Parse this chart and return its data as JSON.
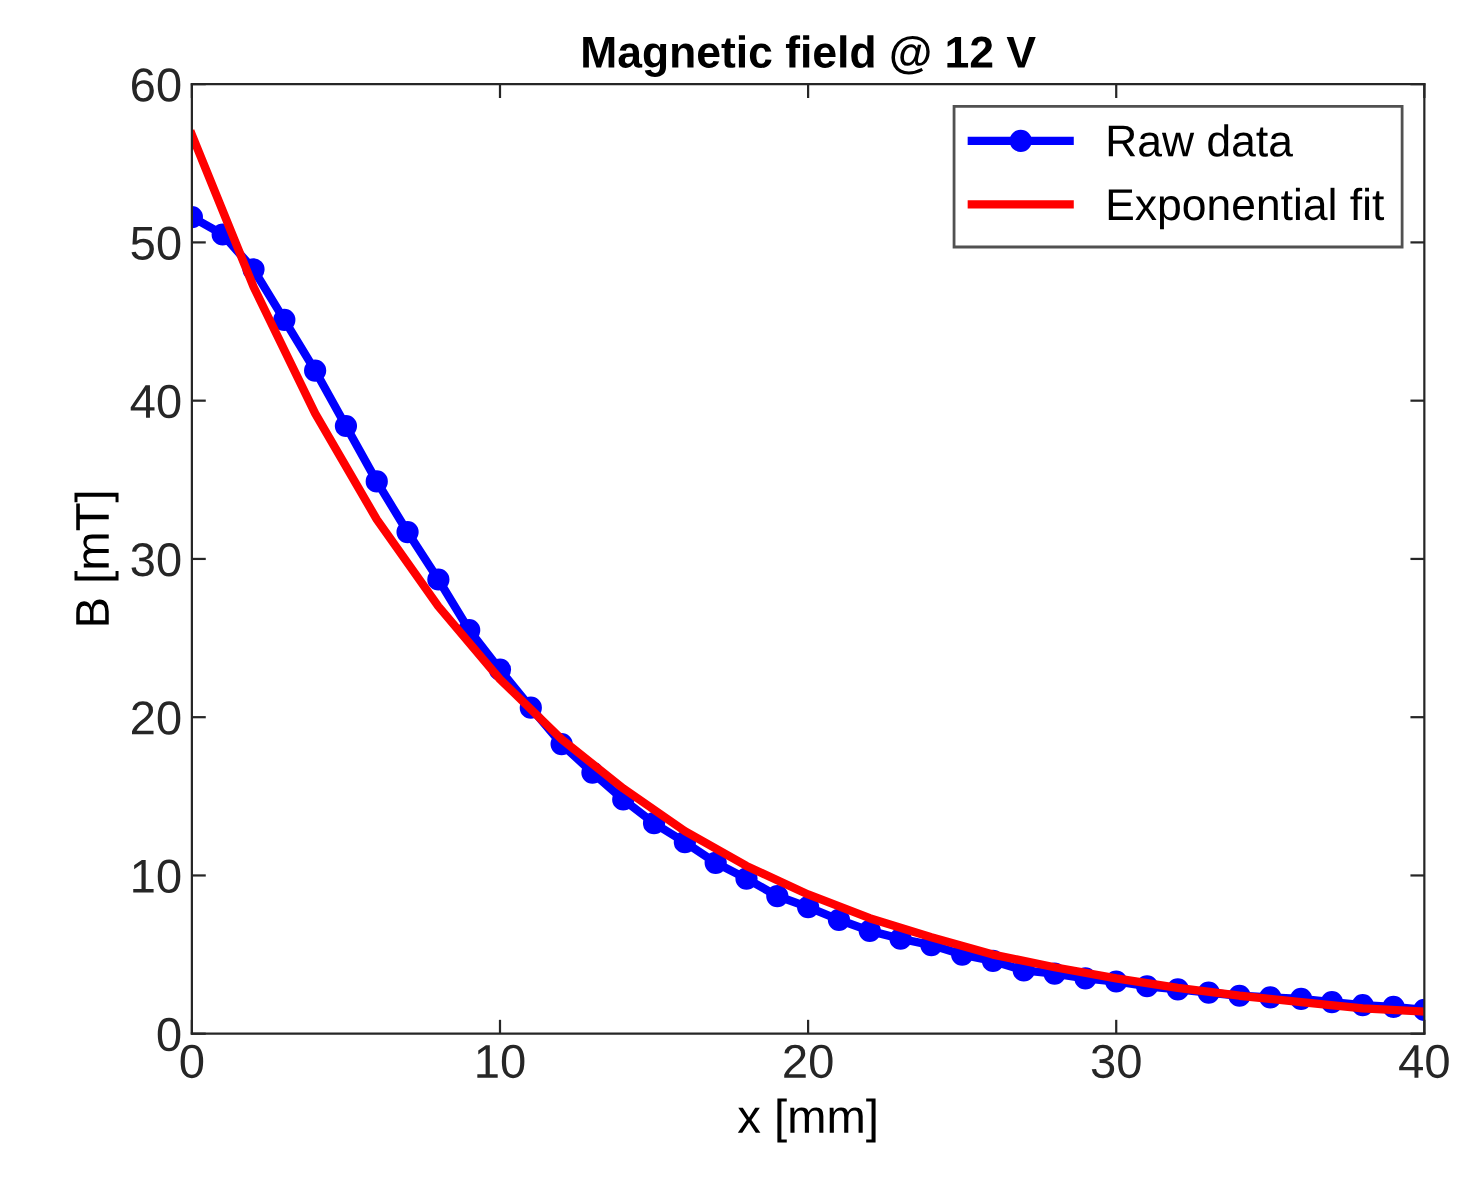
{
  "chart_data": {
    "type": "line",
    "title": "Magnetic field @ 12 V",
    "xlabel": "x [mm]",
    "ylabel": "B [mT]",
    "xlim": [
      0,
      40
    ],
    "ylim": [
      0,
      60
    ],
    "xticks": [
      0,
      10,
      20,
      30,
      40
    ],
    "yticks": [
      0,
      10,
      20,
      30,
      40,
      50,
      60
    ],
    "grid": false,
    "legend": "top right",
    "series": [
      {
        "name": "Raw data",
        "color": "#0000ff",
        "marker": "circle",
        "x": [
          0,
          1,
          2,
          3,
          4,
          5,
          6,
          7,
          8,
          9,
          10,
          11,
          12,
          13,
          14,
          15,
          16,
          17,
          18,
          19,
          20,
          21,
          22,
          23,
          24,
          25,
          26,
          27,
          28,
          29,
          30,
          31,
          32,
          33,
          34,
          35,
          36,
          37,
          38,
          39,
          40
        ],
        "values": [
          51.6,
          50.5,
          48.3,
          45.1,
          41.9,
          38.4,
          34.9,
          31.7,
          28.7,
          25.5,
          23.0,
          20.6,
          18.3,
          16.5,
          14.8,
          13.3,
          12.1,
          10.8,
          9.8,
          8.7,
          8.0,
          7.2,
          6.5,
          6.0,
          5.6,
          5.0,
          4.6,
          4.0,
          3.8,
          3.5,
          3.3,
          3.0,
          2.8,
          2.6,
          2.4,
          2.3,
          2.2,
          2.0,
          1.8,
          1.7,
          1.5
        ]
      },
      {
        "name": "Exponential fit",
        "color": "#ff0000",
        "marker": "none",
        "x": [
          0,
          2,
          4,
          6,
          8,
          10,
          12,
          14,
          16,
          18,
          20,
          22,
          24,
          26,
          28,
          30,
          32,
          34,
          36,
          38,
          40
        ],
        "values": [
          56.8,
          47.2,
          39.2,
          32.5,
          27.0,
          22.4,
          18.6,
          15.5,
          12.8,
          10.6,
          8.8,
          7.3,
          6.1,
          5.0,
          4.2,
          3.5,
          2.9,
          2.4,
          2.0,
          1.6,
          1.4
        ]
      }
    ]
  }
}
